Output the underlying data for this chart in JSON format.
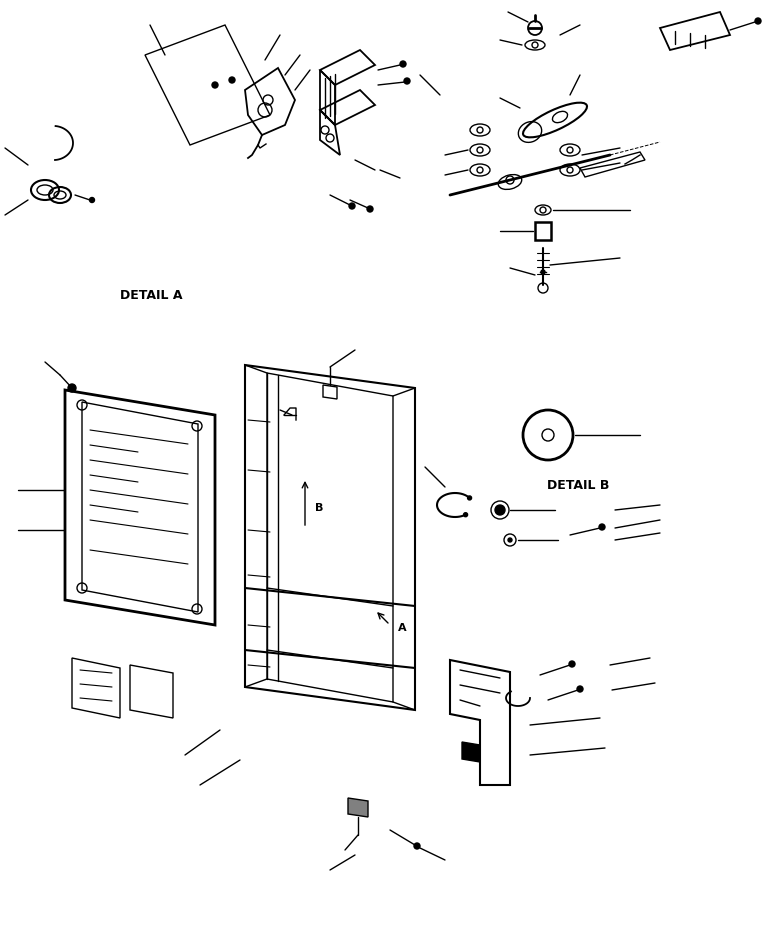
{
  "bg_color": "#ffffff",
  "line_color": "#000000",
  "detail_a_label": "DETAIL A",
  "detail_b_label": "DETAIL B",
  "figsize": [
    7.82,
    9.3
  ],
  "dpi": 100,
  "lw": 1.0
}
